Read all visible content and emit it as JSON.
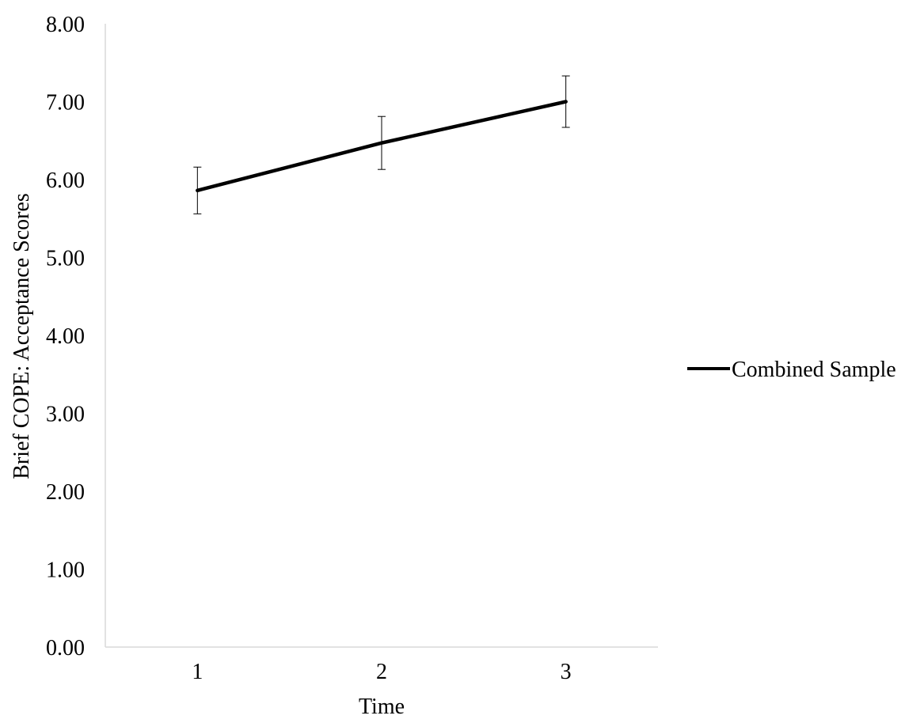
{
  "chart_data": {
    "type": "line",
    "title": "",
    "xlabel": "Time",
    "ylabel": "Brief COPE: Acceptance Scores",
    "categories": [
      "1",
      "2",
      "3"
    ],
    "ylim": [
      0,
      8
    ],
    "yticks": [
      "0.00",
      "1.00",
      "2.00",
      "3.00",
      "4.00",
      "5.00",
      "6.00",
      "7.00",
      "8.00"
    ],
    "series": [
      {
        "name": "Combined Sample",
        "color": "#000000",
        "values": [
          5.86,
          6.47,
          7.0
        ],
        "error_low": [
          5.56,
          6.13,
          6.67
        ],
        "error_high": [
          6.16,
          6.81,
          7.33
        ]
      }
    ],
    "grid": false,
    "legend_position": "right"
  }
}
